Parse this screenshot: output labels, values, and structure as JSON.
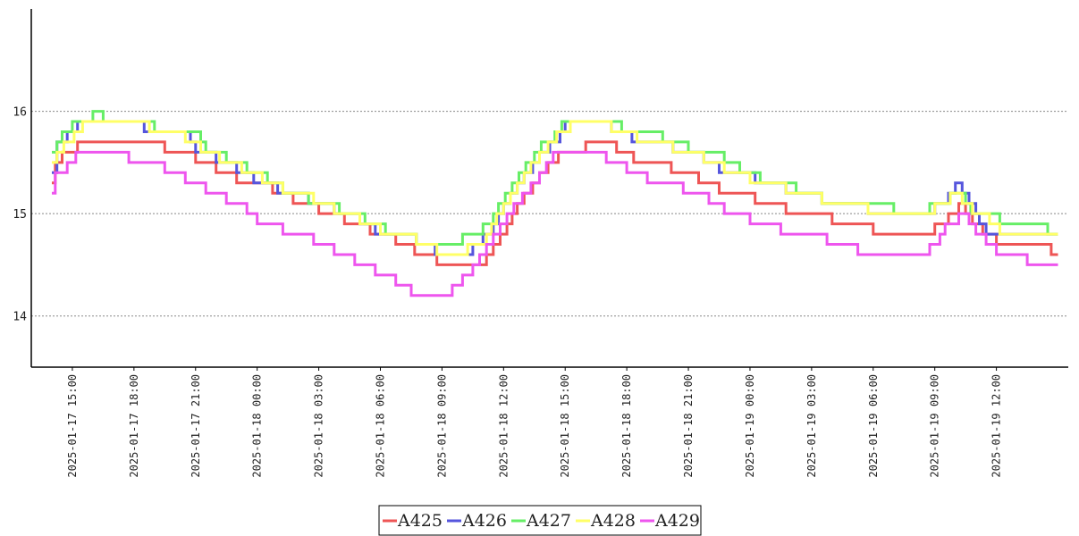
{
  "chart_data": {
    "type": "line",
    "step": true,
    "x_start": "2025-01-17 14:00",
    "x_end": "2025-01-19 15:00",
    "x_range": [
      "2025-01-17 13:00",
      "2025-01-19 15:30"
    ],
    "ylim": [
      13.5,
      17.0
    ],
    "y_ticks": [
      14,
      15,
      16
    ],
    "y_tick_labels": [
      "14",
      "15",
      "16"
    ],
    "x_ticks": [
      "2025-01-17 15:00",
      "2025-01-17 18:00",
      "2025-01-17 21:00",
      "2025-01-18 00:00",
      "2025-01-18 03:00",
      "2025-01-18 06:00",
      "2025-01-18 09:00",
      "2025-01-18 12:00",
      "2025-01-18 15:00",
      "2025-01-18 18:00",
      "2025-01-18 21:00",
      "2025-01-19 00:00",
      "2025-01-19 03:00",
      "2025-01-19 06:00",
      "2025-01-19 09:00",
      "2025-01-19 12:00"
    ],
    "x_tick_labels": [
      "2025-01-17  15:00",
      "2025-01-17  18:00",
      "2025-01-17  21:00",
      "2025-01-18  00:00",
      "2025-01-18  03:00",
      "2025-01-18  06:00",
      "2025-01-18  09:00",
      "2025-01-18  12:00",
      "2025-01-18  15:00",
      "2025-01-18  18:00",
      "2025-01-18  21:00",
      "2025-01-19  00:00",
      "2025-01-19  03:00",
      "2025-01-19  06:00",
      "2025-01-19  09:00",
      "2025-01-19  12:00"
    ],
    "grid": "horizontal-dotted",
    "legend": "bottom-center",
    "series": [
      {
        "name": "A425",
        "color": "#ee5555",
        "values": [
          [
            "2025-01-17 14:00",
            15.3
          ],
          [
            "2025-01-17 14:10",
            15.5
          ],
          [
            "2025-01-17 14:30",
            15.6
          ],
          [
            "2025-01-17 15:15",
            15.7
          ],
          [
            "2025-01-17 19:30",
            15.6
          ],
          [
            "2025-01-17 21:00",
            15.5
          ],
          [
            "2025-01-17 22:00",
            15.4
          ],
          [
            "2025-01-17 23:00",
            15.3
          ],
          [
            "2025-01-18 00:45",
            15.2
          ],
          [
            "2025-01-18 01:45",
            15.1
          ],
          [
            "2025-01-18 03:00",
            15.0
          ],
          [
            "2025-01-18 04:15",
            14.9
          ],
          [
            "2025-01-18 05:30",
            14.8
          ],
          [
            "2025-01-18 06:45",
            14.7
          ],
          [
            "2025-01-18 07:40",
            14.6
          ],
          [
            "2025-01-18 08:45",
            14.5
          ],
          [
            "2025-01-18 11:10",
            14.6
          ],
          [
            "2025-01-18 11:30",
            14.7
          ],
          [
            "2025-01-18 11:50",
            14.8
          ],
          [
            "2025-01-18 12:10",
            14.9
          ],
          [
            "2025-01-18 12:25",
            15.0
          ],
          [
            "2025-01-18 12:40",
            15.1
          ],
          [
            "2025-01-18 13:00",
            15.2
          ],
          [
            "2025-01-18 13:25",
            15.3
          ],
          [
            "2025-01-18 13:45",
            15.4
          ],
          [
            "2025-01-18 14:10",
            15.5
          ],
          [
            "2025-01-18 14:40",
            15.6
          ],
          [
            "2025-01-18 16:00",
            15.7
          ],
          [
            "2025-01-18 17:30",
            15.6
          ],
          [
            "2025-01-18 18:20",
            15.5
          ],
          [
            "2025-01-18 20:10",
            15.4
          ],
          [
            "2025-01-18 21:30",
            15.3
          ],
          [
            "2025-01-18 22:30",
            15.2
          ],
          [
            "2025-01-19 00:15",
            15.1
          ],
          [
            "2025-01-19 01:45",
            15.0
          ],
          [
            "2025-01-19 04:00",
            14.9
          ],
          [
            "2025-01-19 06:00",
            14.8
          ],
          [
            "2025-01-19 09:00",
            14.9
          ],
          [
            "2025-01-19 09:40",
            15.0
          ],
          [
            "2025-01-19 10:10",
            15.1
          ],
          [
            "2025-01-19 10:30",
            15.0
          ],
          [
            "2025-01-19 10:50",
            14.9
          ],
          [
            "2025-01-19 11:20",
            14.8
          ],
          [
            "2025-01-19 12:00",
            14.7
          ],
          [
            "2025-01-19 14:40",
            14.6
          ],
          [
            "2025-01-19 15:00",
            14.6
          ]
        ]
      },
      {
        "name": "A426",
        "color": "#5555dd",
        "values": [
          [
            "2025-01-17 14:00",
            15.4
          ],
          [
            "2025-01-17 14:15",
            15.7
          ],
          [
            "2025-01-17 14:45",
            15.8
          ],
          [
            "2025-01-17 15:15",
            15.9
          ],
          [
            "2025-01-17 18:30",
            15.8
          ],
          [
            "2025-01-17 20:45",
            15.7
          ],
          [
            "2025-01-17 21:00",
            15.6
          ],
          [
            "2025-01-17 22:00",
            15.5
          ],
          [
            "2025-01-17 23:00",
            15.4
          ],
          [
            "2025-01-17 23:50",
            15.3
          ],
          [
            "2025-01-18 01:00",
            15.2
          ],
          [
            "2025-01-18 02:30",
            15.1
          ],
          [
            "2025-01-18 03:45",
            15.0
          ],
          [
            "2025-01-18 05:00",
            14.9
          ],
          [
            "2025-01-18 05:45",
            14.8
          ],
          [
            "2025-01-18 07:45",
            14.7
          ],
          [
            "2025-01-18 08:40",
            14.6
          ],
          [
            "2025-01-18 10:30",
            14.7
          ],
          [
            "2025-01-18 11:00",
            14.8
          ],
          [
            "2025-01-18 11:30",
            14.9
          ],
          [
            "2025-01-18 11:45",
            15.0
          ],
          [
            "2025-01-18 12:00",
            15.1
          ],
          [
            "2025-01-18 12:20",
            15.2
          ],
          [
            "2025-01-18 12:40",
            15.3
          ],
          [
            "2025-01-18 13:00",
            15.4
          ],
          [
            "2025-01-18 13:25",
            15.5
          ],
          [
            "2025-01-18 13:45",
            15.6
          ],
          [
            "2025-01-18 14:15",
            15.7
          ],
          [
            "2025-01-18 14:45",
            15.8
          ],
          [
            "2025-01-18 15:00",
            15.9
          ],
          [
            "2025-01-18 17:15",
            15.8
          ],
          [
            "2025-01-18 18:15",
            15.7
          ],
          [
            "2025-01-18 20:15",
            15.6
          ],
          [
            "2025-01-18 21:45",
            15.5
          ],
          [
            "2025-01-18 22:30",
            15.4
          ],
          [
            "2025-01-19 00:15",
            15.3
          ],
          [
            "2025-01-19 01:45",
            15.2
          ],
          [
            "2025-01-19 03:30",
            15.1
          ],
          [
            "2025-01-19 05:45",
            15.0
          ],
          [
            "2025-01-19 09:00",
            15.1
          ],
          [
            "2025-01-19 09:40",
            15.2
          ],
          [
            "2025-01-19 10:00",
            15.3
          ],
          [
            "2025-01-19 10:20",
            15.2
          ],
          [
            "2025-01-19 10:40",
            15.1
          ],
          [
            "2025-01-19 11:00",
            15.0
          ],
          [
            "2025-01-19 11:10",
            14.9
          ],
          [
            "2025-01-19 11:30",
            14.8
          ],
          [
            "2025-01-19 15:00",
            14.8
          ]
        ]
      },
      {
        "name": "A427",
        "color": "#66ee66",
        "values": [
          [
            "2025-01-17 14:00",
            15.6
          ],
          [
            "2025-01-17 14:15",
            15.7
          ],
          [
            "2025-01-17 14:30",
            15.8
          ],
          [
            "2025-01-17 15:00",
            15.9
          ],
          [
            "2025-01-17 16:00",
            16.0
          ],
          [
            "2025-01-17 16:30",
            15.9
          ],
          [
            "2025-01-17 19:00",
            15.8
          ],
          [
            "2025-01-17 21:15",
            15.7
          ],
          [
            "2025-01-17 21:30",
            15.6
          ],
          [
            "2025-01-17 22:30",
            15.5
          ],
          [
            "2025-01-17 23:30",
            15.4
          ],
          [
            "2025-01-18 00:30",
            15.3
          ],
          [
            "2025-01-18 01:15",
            15.2
          ],
          [
            "2025-01-18 02:30",
            15.1
          ],
          [
            "2025-01-18 04:00",
            15.0
          ],
          [
            "2025-01-18 05:15",
            14.9
          ],
          [
            "2025-01-18 06:15",
            14.8
          ],
          [
            "2025-01-18 07:45",
            14.7
          ],
          [
            "2025-01-18 10:00",
            14.8
          ],
          [
            "2025-01-18 11:00",
            14.9
          ],
          [
            "2025-01-18 11:30",
            15.0
          ],
          [
            "2025-01-18 11:45",
            15.1
          ],
          [
            "2025-01-18 12:05",
            15.2
          ],
          [
            "2025-01-18 12:25",
            15.3
          ],
          [
            "2025-01-18 12:45",
            15.4
          ],
          [
            "2025-01-18 13:05",
            15.5
          ],
          [
            "2025-01-18 13:30",
            15.6
          ],
          [
            "2025-01-18 13:50",
            15.7
          ],
          [
            "2025-01-18 14:30",
            15.8
          ],
          [
            "2025-01-18 14:50",
            15.9
          ],
          [
            "2025-01-18 17:45",
            15.8
          ],
          [
            "2025-01-18 19:45",
            15.7
          ],
          [
            "2025-01-18 21:00",
            15.6
          ],
          [
            "2025-01-18 22:45",
            15.5
          ],
          [
            "2025-01-18 23:30",
            15.4
          ],
          [
            "2025-01-19 00:30",
            15.3
          ],
          [
            "2025-01-19 02:15",
            15.2
          ],
          [
            "2025-01-19 03:30",
            15.1
          ],
          [
            "2025-01-19 05:00",
            15.1
          ],
          [
            "2025-01-19 07:00",
            15.0
          ],
          [
            "2025-01-19 08:45",
            15.1
          ],
          [
            "2025-01-19 09:45",
            15.2
          ],
          [
            "2025-01-19 10:30",
            15.1
          ],
          [
            "2025-01-19 10:45",
            15.0
          ],
          [
            "2025-01-19 12:10",
            14.9
          ],
          [
            "2025-01-19 14:30",
            14.8
          ],
          [
            "2025-01-19 15:00",
            14.8
          ]
        ]
      },
      {
        "name": "A428",
        "color": "#ffff66",
        "values": [
          [
            "2025-01-17 14:00",
            15.5
          ],
          [
            "2025-01-17 14:15",
            15.6
          ],
          [
            "2025-01-17 14:35",
            15.7
          ],
          [
            "2025-01-17 15:05",
            15.8
          ],
          [
            "2025-01-17 15:30",
            15.9
          ],
          [
            "2025-01-17 18:45",
            15.8
          ],
          [
            "2025-01-17 20:30",
            15.7
          ],
          [
            "2025-01-17 21:15",
            15.6
          ],
          [
            "2025-01-17 22:10",
            15.5
          ],
          [
            "2025-01-17 23:15",
            15.4
          ],
          [
            "2025-01-18 00:15",
            15.3
          ],
          [
            "2025-01-18 01:15",
            15.2
          ],
          [
            "2025-01-18 02:45",
            15.1
          ],
          [
            "2025-01-18 03:45",
            15.0
          ],
          [
            "2025-01-18 05:00",
            14.9
          ],
          [
            "2025-01-18 06:00",
            14.8
          ],
          [
            "2025-01-18 07:45",
            14.7
          ],
          [
            "2025-01-18 08:45",
            14.6
          ],
          [
            "2025-01-18 10:15",
            14.7
          ],
          [
            "2025-01-18 11:10",
            14.8
          ],
          [
            "2025-01-18 11:25",
            14.9
          ],
          [
            "2025-01-18 11:40",
            15.0
          ],
          [
            "2025-01-18 12:00",
            15.1
          ],
          [
            "2025-01-18 12:20",
            15.2
          ],
          [
            "2025-01-18 12:40",
            15.3
          ],
          [
            "2025-01-18 13:00",
            15.4
          ],
          [
            "2025-01-18 13:20",
            15.5
          ],
          [
            "2025-01-18 13:45",
            15.6
          ],
          [
            "2025-01-18 14:10",
            15.7
          ],
          [
            "2025-01-18 14:35",
            15.8
          ],
          [
            "2025-01-18 15:15",
            15.9
          ],
          [
            "2025-01-18 17:15",
            15.8
          ],
          [
            "2025-01-18 18:30",
            15.7
          ],
          [
            "2025-01-18 20:15",
            15.6
          ],
          [
            "2025-01-18 21:45",
            15.5
          ],
          [
            "2025-01-18 22:45",
            15.4
          ],
          [
            "2025-01-19 00:00",
            15.3
          ],
          [
            "2025-01-19 01:45",
            15.2
          ],
          [
            "2025-01-19 03:30",
            15.1
          ],
          [
            "2025-01-19 05:45",
            15.0
          ],
          [
            "2025-01-19 09:00",
            15.1
          ],
          [
            "2025-01-19 09:45",
            15.2
          ],
          [
            "2025-01-19 10:20",
            15.1
          ],
          [
            "2025-01-19 10:50",
            15.0
          ],
          [
            "2025-01-19 11:40",
            14.9
          ],
          [
            "2025-01-19 12:10",
            14.8
          ],
          [
            "2025-01-19 15:00",
            14.8
          ]
        ]
      },
      {
        "name": "A429",
        "color": "#ee55ee",
        "values": [
          [
            "2025-01-17 14:00",
            15.2
          ],
          [
            "2025-01-17 14:10",
            15.4
          ],
          [
            "2025-01-17 14:45",
            15.5
          ],
          [
            "2025-01-17 15:10",
            15.6
          ],
          [
            "2025-01-17 17:45",
            15.5
          ],
          [
            "2025-01-17 19:30",
            15.4
          ],
          [
            "2025-01-17 20:30",
            15.3
          ],
          [
            "2025-01-17 21:30",
            15.2
          ],
          [
            "2025-01-17 22:30",
            15.1
          ],
          [
            "2025-01-17 23:30",
            15.0
          ],
          [
            "2025-01-18 00:00",
            14.9
          ],
          [
            "2025-01-18 01:15",
            14.8
          ],
          [
            "2025-01-18 02:45",
            14.7
          ],
          [
            "2025-01-18 03:45",
            14.6
          ],
          [
            "2025-01-18 04:45",
            14.5
          ],
          [
            "2025-01-18 05:45",
            14.4
          ],
          [
            "2025-01-18 06:45",
            14.3
          ],
          [
            "2025-01-18 07:30",
            14.2
          ],
          [
            "2025-01-18 09:30",
            14.3
          ],
          [
            "2025-01-18 10:00",
            14.4
          ],
          [
            "2025-01-18 10:30",
            14.5
          ],
          [
            "2025-01-18 10:50",
            14.6
          ],
          [
            "2025-01-18 11:10",
            14.7
          ],
          [
            "2025-01-18 11:30",
            14.8
          ],
          [
            "2025-01-18 11:50",
            14.9
          ],
          [
            "2025-01-18 12:10",
            15.0
          ],
          [
            "2025-01-18 12:30",
            15.1
          ],
          [
            "2025-01-18 12:55",
            15.2
          ],
          [
            "2025-01-18 13:20",
            15.3
          ],
          [
            "2025-01-18 13:45",
            15.4
          ],
          [
            "2025-01-18 14:05",
            15.5
          ],
          [
            "2025-01-18 14:25",
            15.6
          ],
          [
            "2025-01-18 17:00",
            15.5
          ],
          [
            "2025-01-18 18:00",
            15.4
          ],
          [
            "2025-01-18 19:00",
            15.3
          ],
          [
            "2025-01-18 20:45",
            15.2
          ],
          [
            "2025-01-18 22:00",
            15.1
          ],
          [
            "2025-01-18 22:45",
            15.0
          ],
          [
            "2025-01-19 00:00",
            14.9
          ],
          [
            "2025-01-19 01:30",
            14.8
          ],
          [
            "2025-01-19 03:45",
            14.7
          ],
          [
            "2025-01-19 05:15",
            14.6
          ],
          [
            "2025-01-19 08:45",
            14.7
          ],
          [
            "2025-01-19 09:15",
            14.8
          ],
          [
            "2025-01-19 09:30",
            14.9
          ],
          [
            "2025-01-19 10:10",
            15.0
          ],
          [
            "2025-01-19 10:40",
            14.9
          ],
          [
            "2025-01-19 11:00",
            14.8
          ],
          [
            "2025-01-19 11:30",
            14.7
          ],
          [
            "2025-01-19 12:00",
            14.6
          ],
          [
            "2025-01-19 13:30",
            14.5
          ],
          [
            "2025-01-19 15:00",
            14.5
          ]
        ]
      }
    ]
  }
}
